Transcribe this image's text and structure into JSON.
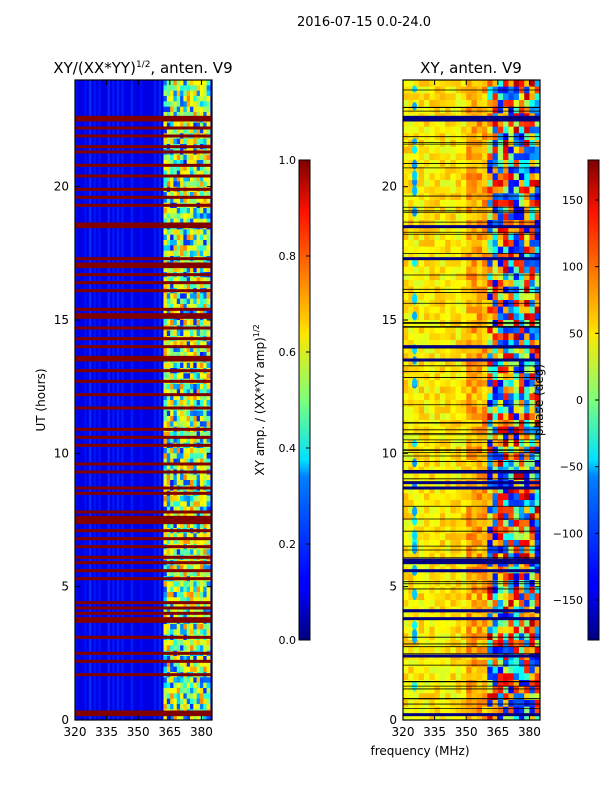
{
  "figure": {
    "suptitle": "2016-07-15 0.0-24.0",
    "xlabel": "frequency (MHz)",
    "ylabel": "UT (hours)"
  },
  "chart_data": [
    {
      "type": "heatmap",
      "title_main": "XY/(XX*YY)",
      "title_sup": "1/2",
      "title_rest": ", anten. V9",
      "xlim": [
        320,
        385
      ],
      "ylim": [
        0,
        24
      ],
      "x_ticks": [
        320,
        335,
        350,
        365,
        380
      ],
      "y_ticks": [
        0,
        5,
        10,
        15,
        20
      ],
      "colormap": "jet",
      "colorbar": {
        "label_main": "XY amp. / (XX*YY amp)",
        "label_sup": "1/2",
        "range": [
          0.0,
          1.0
        ],
        "ticks": [
          "0.0",
          "0.2",
          "0.4",
          "0.6",
          "0.8",
          "1.0"
        ]
      },
      "background_level": 0.1,
      "bright_band_MHz": [
        362,
        384
      ],
      "flagged_hours": [
        0.2,
        0.3,
        1.7,
        2.2,
        2.5,
        3.1,
        3.7,
        3.8,
        4.0,
        4.2,
        4.4,
        5.3,
        5.6,
        5.9,
        6.1,
        6.5,
        6.8,
        7.1,
        7.4,
        7.5,
        7.6,
        7.8,
        8.5,
        8.7,
        9.3,
        9.6,
        10.3,
        10.6,
        10.9,
        11.7,
        12.2,
        12.7,
        13.1,
        13.5,
        13.6,
        14.0,
        14.3,
        14.7,
        15.1,
        15.2,
        15.4,
        16.1,
        16.4,
        16.7,
        17.0,
        17.1,
        17.3,
        18.5,
        18.6,
        19.3,
        19.6,
        19.9,
        20.4,
        20.8,
        21.3,
        21.5,
        21.9,
        22.2,
        22.5,
        22.6
      ]
    },
    {
      "type": "heatmap",
      "title": "XY, anten. V9",
      "xlim": [
        320,
        385
      ],
      "ylim": [
        0,
        24
      ],
      "x_ticks": [
        320,
        335,
        350,
        365,
        380
      ],
      "y_ticks": [
        0,
        5,
        10,
        15,
        20
      ],
      "colormap": "jet",
      "colorbar": {
        "label": "phase (deg)",
        "range": [
          -180,
          180
        ],
        "ticks": [
          "−150",
          "−100",
          "−50",
          "0",
          "50",
          "100",
          "150"
        ]
      },
      "flagged_hours": [
        0.2,
        2.4,
        3.8,
        4.1,
        5.6,
        5.9,
        6.0,
        8.7,
        8.9,
        9.3,
        13.5,
        14.0,
        17.3,
        18.5,
        22.5,
        22.6
      ]
    }
  ]
}
